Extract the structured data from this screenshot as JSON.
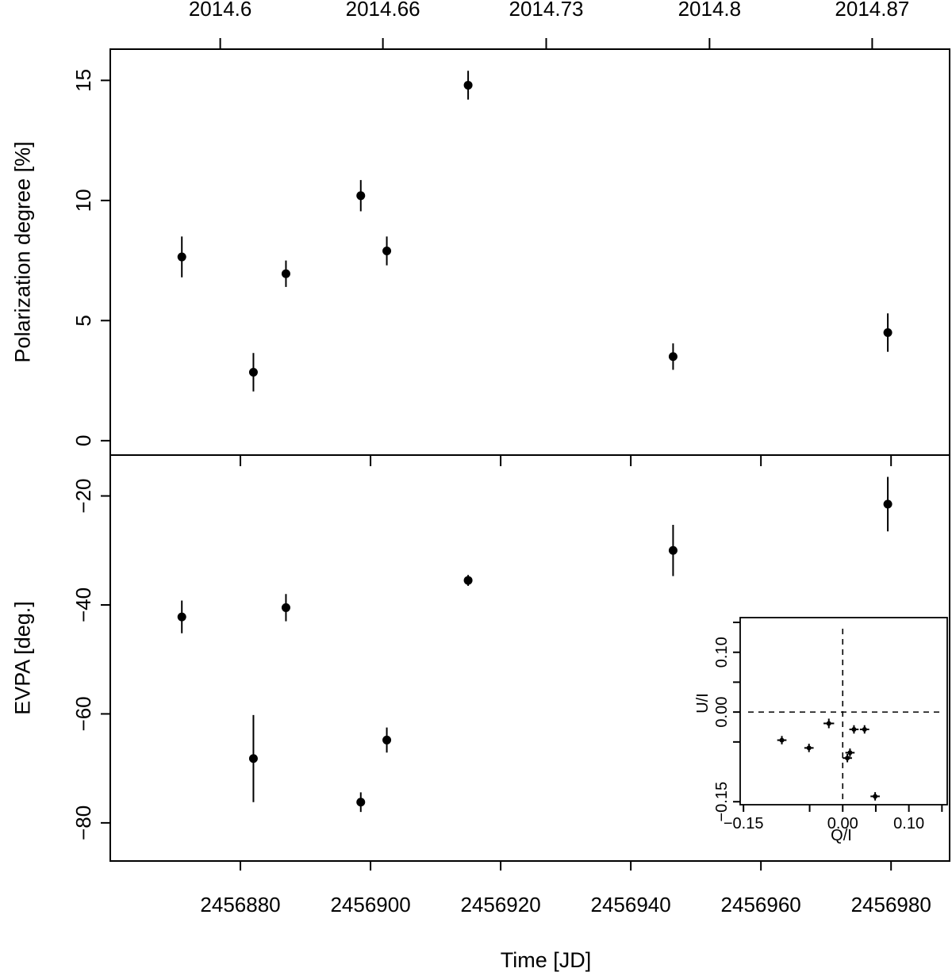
{
  "chart_data": [
    {
      "id": "polarization",
      "type": "scatter",
      "ylabel": "Polarization degree [%]",
      "xlim": [
        2456860,
        2456989
      ],
      "ylim": [
        -0.6,
        16.3
      ],
      "yticks": [
        0,
        5,
        10,
        15
      ],
      "top_axis": {
        "tick_labels": [
          "2014.6",
          "2014.66",
          "2014.73",
          "2014.8",
          "2014.87"
        ],
        "tick_positions_jd": [
          2456876.9,
          2456901.9,
          2456927.0,
          2456952.1,
          2456977.1
        ]
      },
      "points": [
        {
          "x": 2456871,
          "y": 7.65,
          "err": 0.85
        },
        {
          "x": 2456882,
          "y": 2.85,
          "err": 0.8
        },
        {
          "x": 2456887,
          "y": 6.95,
          "err": 0.55
        },
        {
          "x": 2456898.5,
          "y": 10.2,
          "err": 0.65
        },
        {
          "x": 2456902.5,
          "y": 7.9,
          "err": 0.6
        },
        {
          "x": 2456915,
          "y": 14.8,
          "err": 0.6
        },
        {
          "x": 2456946.5,
          "y": 3.5,
          "err": 0.55
        },
        {
          "x": 2456979.5,
          "y": 4.5,
          "err": 0.8
        }
      ]
    },
    {
      "id": "evpa",
      "type": "scatter",
      "xlabel": "Time [JD]",
      "ylabel": "EVPA [deg.]",
      "xlim": [
        2456860,
        2456989
      ],
      "ylim": [
        -87,
        -12.5
      ],
      "yticks": [
        -80,
        -60,
        -40,
        -20
      ],
      "xticks": [
        2456880,
        2456900,
        2456920,
        2456940,
        2456960,
        2456980
      ],
      "points": [
        {
          "x": 2456871,
          "y": -42.2,
          "err": 3.0
        },
        {
          "x": 2456882,
          "y": -68.2,
          "err": 8.0
        },
        {
          "x": 2456887,
          "y": -40.5,
          "err": 2.5
        },
        {
          "x": 2456898.5,
          "y": -76.2,
          "err": 1.8
        },
        {
          "x": 2456902.5,
          "y": -64.8,
          "err": 2.3
        },
        {
          "x": 2456915,
          "y": -35.5,
          "err": 1.0
        },
        {
          "x": 2456946.5,
          "y": -30.0,
          "err": 4.7
        },
        {
          "x": 2456979.5,
          "y": -21.5,
          "err": 5.0
        }
      ]
    },
    {
      "id": "qu-inset",
      "type": "scatter",
      "xlabel": "Q/I",
      "ylabel": "U/I",
      "xlim": [
        -0.155,
        0.158
      ],
      "ylim": [
        -0.155,
        0.158
      ],
      "xticks": [
        -0.15,
        0.0,
        0.1
      ],
      "yticks": [
        -0.15,
        0.0,
        0.1
      ],
      "xtick_labels": [
        "−0.15",
        "0.00",
        "0.10"
      ],
      "ytick_labels": [
        "−0.15",
        "0.00",
        "0.10"
      ],
      "reference_lines": {
        "x": 0,
        "y": 0
      },
      "points": [
        {
          "x": -0.092,
          "y": -0.047,
          "ex": 0.007,
          "ey": 0.007
        },
        {
          "x": -0.051,
          "y": -0.06,
          "ex": 0.007,
          "ey": 0.007
        },
        {
          "x": -0.021,
          "y": -0.019,
          "ex": 0.008,
          "ey": 0.008
        },
        {
          "x": 0.017,
          "y": -0.029,
          "ex": 0.007,
          "ey": 0.007
        },
        {
          "x": 0.033,
          "y": -0.029,
          "ex": 0.007,
          "ey": 0.007
        },
        {
          "x": 0.011,
          "y": -0.068,
          "ex": 0.007,
          "ey": 0.007
        },
        {
          "x": 0.007,
          "y": -0.077,
          "ex": 0.007,
          "ey": 0.007
        },
        {
          "x": 0.049,
          "y": -0.141,
          "ex": 0.007,
          "ey": 0.007
        }
      ]
    }
  ]
}
